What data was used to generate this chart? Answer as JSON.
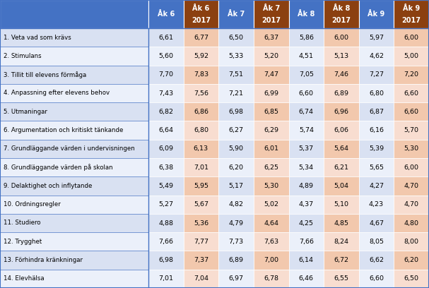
{
  "col_headers": [
    "Åk 6",
    "Åk 6\n2017",
    "Åk 7",
    "Åk 7\n2017",
    "Åk 8",
    "Åk 8\n2017",
    "Åk 9",
    "Åk 9\n2017"
  ],
  "row_labels": [
    "1. Veta vad som krävs",
    "2. Stimulans",
    "3. Tillit till elevens förmåga",
    "4. Anpassning efter elevens behov",
    "5. Utmaningar",
    "6. Argumentation och kritiskt tänkande",
    "7. Grundläggande värden i undervisningen",
    "8. Grundläggande värden på skolan",
    "9. Delaktighet och inflytande",
    "10. Ordningsregler",
    "11. Studiero",
    "12. Trygghet",
    "13. Förhindra kränkningar",
    "14. Elevhälsa"
  ],
  "values": [
    [
      6.61,
      6.77,
      6.5,
      6.37,
      5.86,
      6.0,
      5.97,
      6.0
    ],
    [
      5.6,
      5.92,
      5.33,
      5.2,
      4.51,
      5.13,
      4.62,
      5.0
    ],
    [
      7.7,
      7.83,
      7.51,
      7.47,
      7.05,
      7.46,
      7.27,
      7.2
    ],
    [
      7.43,
      7.56,
      7.21,
      6.99,
      6.6,
      6.89,
      6.8,
      6.6
    ],
    [
      6.82,
      6.86,
      6.98,
      6.85,
      6.74,
      6.96,
      6.87,
      6.6
    ],
    [
      6.64,
      6.8,
      6.27,
      6.29,
      5.74,
      6.06,
      6.16,
      5.7
    ],
    [
      6.09,
      6.13,
      5.9,
      6.01,
      5.37,
      5.64,
      5.39,
      5.3
    ],
    [
      6.38,
      7.01,
      6.2,
      6.25,
      5.34,
      6.21,
      5.65,
      6.0
    ],
    [
      5.49,
      5.95,
      5.17,
      5.3,
      4.89,
      5.04,
      4.27,
      4.7
    ],
    [
      5.27,
      5.67,
      4.82,
      5.02,
      4.37,
      5.1,
      4.23,
      4.7
    ],
    [
      4.88,
      5.36,
      4.79,
      4.64,
      4.25,
      4.85,
      4.67,
      4.8
    ],
    [
      7.66,
      7.77,
      7.73,
      7.63,
      7.66,
      8.24,
      8.05,
      8.0
    ],
    [
      6.98,
      7.37,
      6.89,
      7.0,
      6.14,
      6.72,
      6.62,
      6.2
    ],
    [
      7.01,
      7.04,
      6.97,
      6.78,
      6.46,
      6.55,
      6.6,
      6.5
    ]
  ],
  "header_blue": "#4472C4",
  "header_brown": "#8B4010",
  "cell_blue_even": "#D9E1F2",
  "cell_blue_odd": "#EBF0FA",
  "cell_brown_even": "#F2C8AD",
  "cell_brown_odd": "#F8DDD0",
  "label_bg_even": "#D9E1F2",
  "label_bg_odd": "#EBF0FA",
  "border_color": "#4472C4",
  "fig_w": 6.07,
  "fig_h": 4.08,
  "dpi": 100
}
